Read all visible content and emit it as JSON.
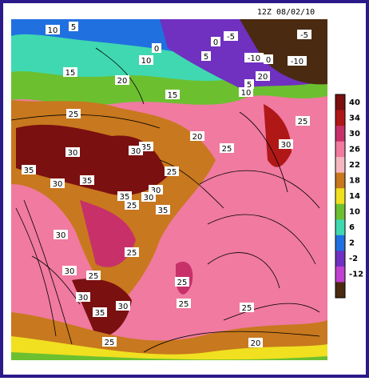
{
  "header": {
    "title": "12Z 08/02/10"
  },
  "legend": {
    "labels": [
      "40",
      "34",
      "30",
      "26",
      "22",
      "18",
      "14",
      "10",
      "6",
      "2",
      "-2",
      "-12"
    ],
    "colors": [
      "#7a1010",
      "#b01818",
      "#c8306a",
      "#f07aa0",
      "#f6b8c0",
      "#c8781e",
      "#f0e020",
      "#6cc030",
      "#40d8b0",
      "#2070e0",
      "#7030c0",
      "#c040d0",
      "#4a2a10"
    ]
  },
  "contour_labels": [
    "10",
    "5",
    "0",
    "10",
    "0",
    "-5",
    "-5",
    "5",
    "-10",
    "0",
    "-10",
    "15",
    "20",
    "15",
    "20",
    "5",
    "10",
    "25",
    "25",
    "20",
    "25",
    "35",
    "30",
    "30",
    "30",
    "35",
    "35",
    "30",
    "25",
    "30",
    "35",
    "30",
    "25",
    "35",
    "30",
    "25",
    "30",
    "25",
    "25",
    "30",
    "30",
    "35",
    "25",
    "25",
    "25",
    "20"
  ]
}
